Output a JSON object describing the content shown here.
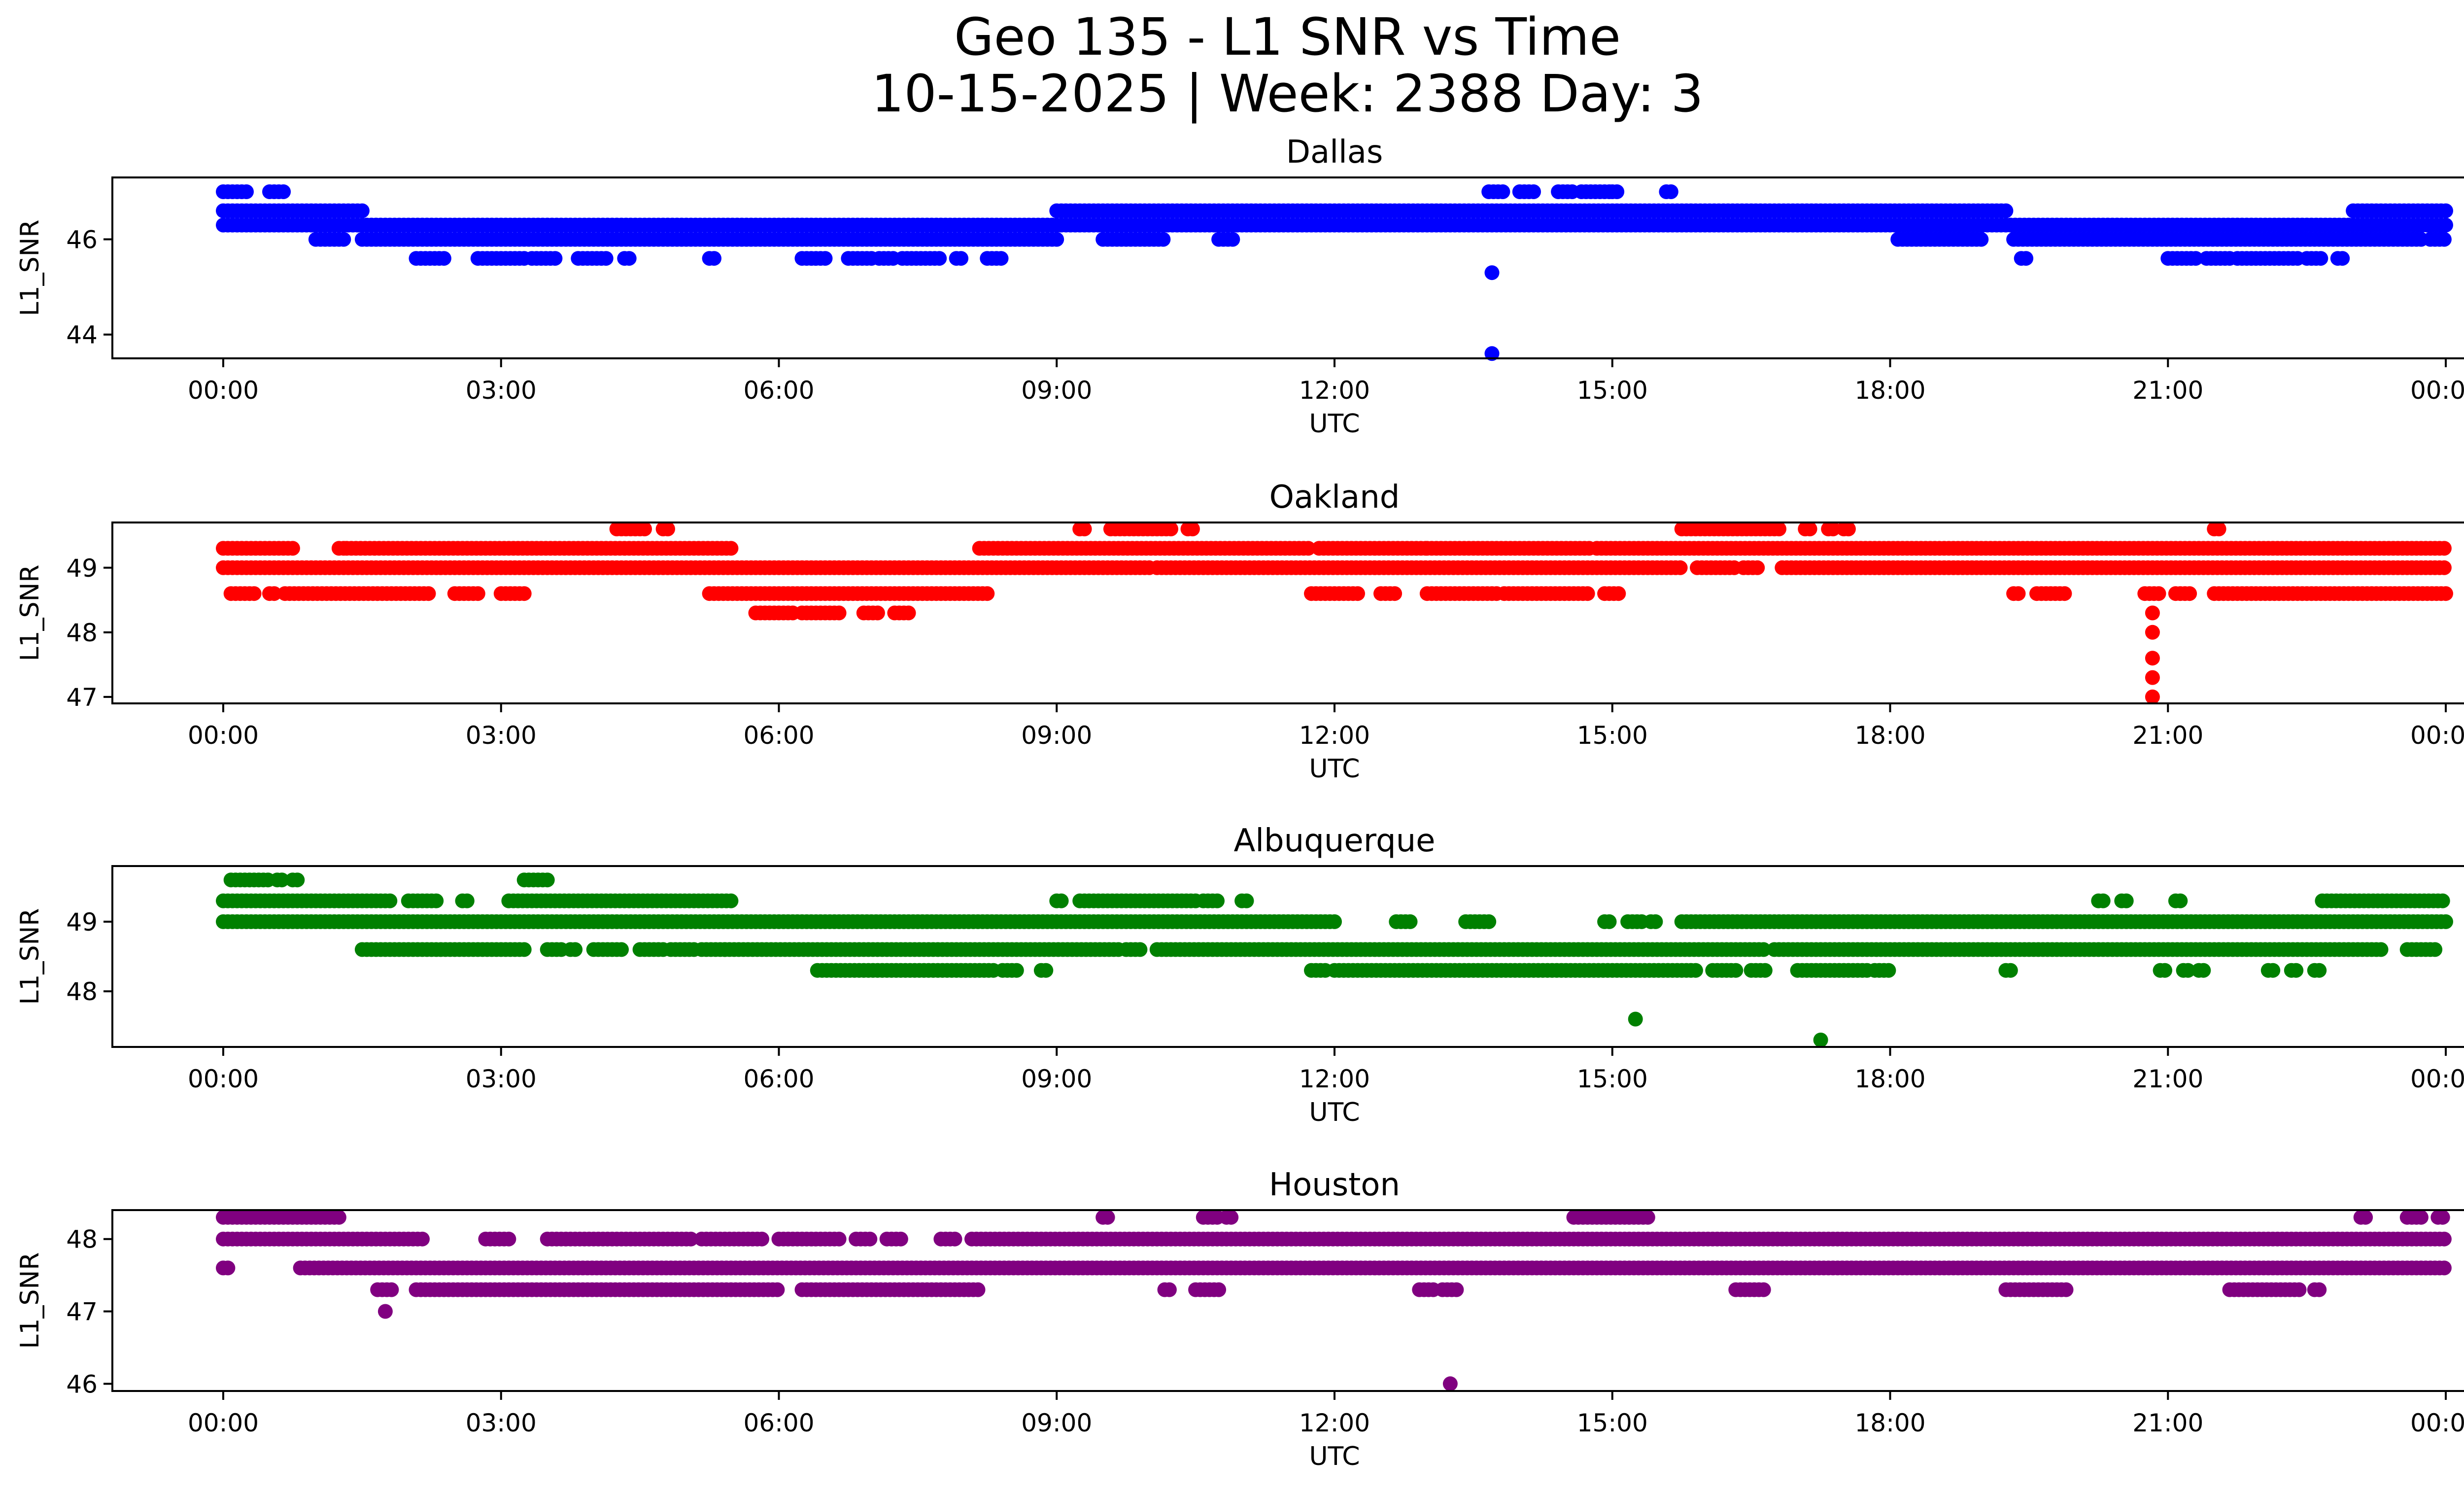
{
  "figure": {
    "title_line1": "Geo 135 - L1 SNR vs Time",
    "title_line2": "10-15-2025 | Week: 2388 Day: 3"
  },
  "chart_data": [
    {
      "type": "scatter",
      "title": "Dallas",
      "xlabel": "UTC",
      "ylabel": "L1_SNR",
      "color": "#0000ff",
      "xlim": [
        "23:20",
        "24:00+2:25"
      ],
      "x_ticks": [
        "00:00",
        "03:00",
        "06:00",
        "09:00",
        "12:00",
        "15:00",
        "18:00",
        "21:00",
        "00:00"
      ],
      "y_ticks": [
        44,
        46
      ],
      "ylim": [
        43.5,
        47.3
      ],
      "series": [
        {
          "levels": [
            {
              "y": 46.6,
              "ranges": [
                [
                  "00:00",
                  "01:30"
                ],
                [
                  "09:00",
                  "19:15"
                ],
                [
                  "23:00",
                  "24:00"
                ]
              ]
            },
            {
              "y": 46.3,
              "ranges": [
                [
                  "00:00",
                  "24:00"
                ]
              ]
            },
            {
              "y": 46.0,
              "ranges": [
                [
                  "01:00",
                  "01:20"
                ],
                [
                  "01:30",
                  "09:00"
                ],
                [
                  "09:30",
                  "10:10"
                ],
                [
                  "10:45",
                  "10:55"
                ],
                [
                  "18:05",
                  "19:00"
                ],
                [
                  "19:20",
                  "23:45"
                ],
                [
                  "23:50",
                  "24:00"
                ]
              ]
            },
            {
              "y": 45.6,
              "ranges": [
                [
                  "02:05",
                  "02:25"
                ],
                [
                  "02:45",
                  "03:15"
                ],
                [
                  "03:20",
                  "03:35"
                ],
                [
                  "03:50",
                  "04:10"
                ],
                [
                  "04:20",
                  "04:25"
                ],
                [
                  "05:15",
                  "05:20"
                ],
                [
                  "06:15",
                  "06:30"
                ],
                [
                  "06:45",
                  "07:00"
                ],
                [
                  "07:05",
                  "07:15"
                ],
                [
                  "07:20",
                  "07:45"
                ],
                [
                  "07:55",
                  "08:00"
                ],
                [
                  "08:15",
                  "08:25"
                ],
                [
                  "19:25",
                  "19:30"
                ],
                [
                  "21:00",
                  "21:20"
                ],
                [
                  "21:25",
                  "21:40"
                ],
                [
                  "21:45",
                  "22:25"
                ],
                [
                  "22:30",
                  "22:40"
                ],
                [
                  "22:50",
                  "22:55"
                ]
              ]
            },
            {
              "y": 47.0,
              "ranges": [
                [
                  "00:00",
                  "00:15"
                ],
                [
                  "00:30",
                  "00:40"
                ],
                [
                  "13:40",
                  "13:50"
                ],
                [
                  "14:00",
                  "14:10"
                ],
                [
                  "14:25",
                  "14:35"
                ],
                [
                  "14:40",
                  "15:00"
                ],
                [
                  "15:00",
                  "15:05"
                ],
                [
                  "15:35",
                  "15:40"
                ]
              ]
            }
          ],
          "points": [
            {
              "x": "13:42",
              "y": 45.3
            },
            {
              "x": "13:42",
              "y": 43.6
            }
          ]
        }
      ]
    },
    {
      "type": "scatter",
      "title": "Oakland",
      "xlabel": "UTC",
      "ylabel": "L1_SNR",
      "color": "#ff0000",
      "x_ticks": [
        "00:00",
        "03:00",
        "06:00",
        "09:00",
        "12:00",
        "15:00",
        "18:00",
        "21:00",
        "00:00"
      ],
      "y_ticks": [
        47,
        48,
        49
      ],
      "ylim": [
        46.9,
        49.7
      ],
      "series": [
        {
          "levels": [
            {
              "y": 49.3,
              "ranges": [
                [
                  "00:00",
                  "00:45"
                ],
                [
                  "01:15",
                  "01:20"
                ],
                [
                  "01:20",
                  "05:30"
                ],
                [
                  "08:10",
                  "11:45"
                ],
                [
                  "11:50",
                  "13:00"
                ],
                [
                  "13:00",
                  "14:45"
                ],
                [
                  "14:50",
                  "24:00"
                ]
              ]
            },
            {
              "y": 49.0,
              "ranges": [
                [
                  "00:00",
                  "10:00"
                ],
                [
                  "10:05",
                  "15:45"
                ],
                [
                  "15:55",
                  "16:20"
                ],
                [
                  "16:25",
                  "16:35"
                ],
                [
                  "16:50",
                  "24:00"
                ]
              ]
            },
            {
              "y": 48.6,
              "ranges": [
                [
                  "00:05",
                  "00:20"
                ],
                [
                  "00:30",
                  "00:35"
                ],
                [
                  "00:40",
                  "02:15"
                ],
                [
                  "02:30",
                  "02:45"
                ],
                [
                  "03:00",
                  "03:15"
                ],
                [
                  "05:15",
                  "08:15"
                ],
                [
                  "11:45",
                  "12:15"
                ],
                [
                  "12:30",
                  "12:40"
                ],
                [
                  "13:00",
                  "13:45"
                ],
                [
                  "13:50",
                  "14:45"
                ],
                [
                  "14:55",
                  "15:05"
                ],
                [
                  "19:20",
                  "19:25"
                ],
                [
                  "19:35",
                  "19:55"
                ],
                [
                  "20:45",
                  "20:55"
                ],
                [
                  "21:05",
                  "21:15"
                ],
                [
                  "21:30",
                  "24:00"
                ]
              ]
            },
            {
              "y": 48.3,
              "ranges": [
                [
                  "05:45",
                  "06:10"
                ],
                [
                  "06:15",
                  "06:40"
                ],
                [
                  "06:55",
                  "07:05"
                ],
                [
                  "07:15",
                  "07:25"
                ]
              ]
            },
            {
              "y": 49.6,
              "ranges": [
                [
                  "04:15",
                  "04:35"
                ],
                [
                  "04:45",
                  "04:50"
                ],
                [
                  "09:15",
                  "09:20"
                ],
                [
                  "09:35",
                  "10:15"
                ],
                [
                  "10:25",
                  "10:30"
                ],
                [
                  "15:45",
                  "16:50"
                ],
                [
                  "17:05",
                  "17:10"
                ],
                [
                  "17:20",
                  "17:25"
                ],
                [
                  "17:30",
                  "17:35"
                ],
                [
                  "21:30",
                  "21:35"
                ]
              ]
            }
          ],
          "points": [
            {
              "x": "20:50",
              "y": 48.3
            },
            {
              "x": "20:50",
              "y": 48.0
            },
            {
              "x": "20:50",
              "y": 47.6
            },
            {
              "x": "20:50",
              "y": 47.3
            },
            {
              "x": "20:50",
              "y": 47.0
            }
          ]
        }
      ]
    },
    {
      "type": "scatter",
      "title": "Albuquerque",
      "xlabel": "UTC",
      "ylabel": "L1_SNR",
      "color": "#008000",
      "x_ticks": [
        "00:00",
        "03:00",
        "06:00",
        "09:00",
        "12:00",
        "15:00",
        "18:00",
        "21:00",
        "00:00"
      ],
      "y_ticks": [
        48,
        49
      ],
      "ylim": [
        47.2,
        49.8
      ],
      "series": [
        {
          "levels": [
            {
              "y": 49.3,
              "ranges": [
                [
                  "00:00",
                  "01:50"
                ],
                [
                  "02:00",
                  "02:20"
                ],
                [
                  "02:35",
                  "02:40"
                ],
                [
                  "03:05",
                  "05:30"
                ],
                [
                  "09:00",
                  "09:05"
                ],
                [
                  "09:15",
                  "10:30"
                ],
                [
                  "10:35",
                  "10:45"
                ],
                [
                  "11:00",
                  "11:05"
                ],
                [
                  "20:15",
                  "20:20"
                ],
                [
                  "20:30",
                  "20:35"
                ],
                [
                  "21:05",
                  "21:10"
                ],
                [
                  "22:40",
                  "24:00"
                ]
              ]
            },
            {
              "y": 49.0,
              "ranges": [
                [
                  "00:00",
                  "12:00"
                ],
                [
                  "12:40",
                  "12:50"
                ],
                [
                  "13:25",
                  "13:40"
                ],
                [
                  "14:55",
                  "15:00"
                ],
                [
                  "15:10",
                  "15:20"
                ],
                [
                  "15:25",
                  "15:30"
                ],
                [
                  "15:45",
                  "24:00"
                ]
              ]
            },
            {
              "y": 48.6,
              "ranges": [
                [
                  "01:30",
                  "03:15"
                ],
                [
                  "03:30",
                  "03:40"
                ],
                [
                  "03:45",
                  "03:50"
                ],
                [
                  "04:00",
                  "04:20"
                ],
                [
                  "04:30",
                  "04:45"
                ],
                [
                  "04:50",
                  "05:05"
                ],
                [
                  "05:10",
                  "05:25"
                ],
                [
                  "05:25",
                  "09:40"
                ],
                [
                  "09:45",
                  "09:55"
                ],
                [
                  "10:05",
                  "16:40"
                ],
                [
                  "16:45",
                  "23:20"
                ],
                [
                  "23:35",
                  "23:55"
                ]
              ]
            },
            {
              "y": 48.3,
              "ranges": [
                [
                  "06:25",
                  "08:20"
                ],
                [
                  "08:25",
                  "08:35"
                ],
                [
                  "08:50",
                  "08:55"
                ],
                [
                  "11:45",
                  "11:55"
                ],
                [
                  "12:00",
                  "15:55"
                ],
                [
                  "16:05",
                  "16:20"
                ],
                [
                  "16:30",
                  "16:40"
                ],
                [
                  "17:00",
                  "17:45"
                ],
                [
                  "17:50",
                  "18:00"
                ],
                [
                  "19:15",
                  "19:20"
                ],
                [
                  "20:55",
                  "21:00"
                ],
                [
                  "21:10",
                  "21:15"
                ],
                [
                  "21:20",
                  "21:25"
                ],
                [
                  "22:05",
                  "22:10"
                ],
                [
                  "22:20",
                  "22:25"
                ],
                [
                  "22:35",
                  "22:40"
                ]
              ]
            },
            {
              "y": 49.6,
              "ranges": [
                [
                  "00:05",
                  "00:30"
                ],
                [
                  "00:35",
                  "00:40"
                ],
                [
                  "00:45",
                  "00:50"
                ],
                [
                  "03:15",
                  "03:30"
                ]
              ]
            }
          ],
          "points": [
            {
              "x": "15:15",
              "y": 47.6
            },
            {
              "x": "17:15",
              "y": 47.3
            }
          ]
        }
      ]
    },
    {
      "type": "scatter",
      "title": "Houston",
      "xlabel": "UTC",
      "ylabel": "L1_SNR",
      "color": "#800080",
      "x_ticks": [
        "00:00",
        "03:00",
        "06:00",
        "09:00",
        "12:00",
        "15:00",
        "18:00",
        "21:00",
        "00:00"
      ],
      "y_ticks": [
        46,
        47,
        48
      ],
      "ylim": [
        45.9,
        48.4
      ],
      "series": [
        {
          "levels": [
            {
              "y": 48.3,
              "ranges": [
                [
                  "00:00",
                  "01:15"
                ],
                [
                  "09:30",
                  "09:35"
                ],
                [
                  "10:35",
                  "10:45"
                ],
                [
                  "10:50",
                  "10:55"
                ],
                [
                  "14:35",
                  "15:25"
                ],
                [
                  "23:05",
                  "23:10"
                ],
                [
                  "23:35",
                  "23:45"
                ],
                [
                  "23:55",
                  "24:00"
                ]
              ]
            },
            {
              "y": 48.0,
              "ranges": [
                [
                  "00:00",
                  "02:10"
                ],
                [
                  "02:50",
                  "03:05"
                ],
                [
                  "03:30",
                  "05:05"
                ],
                [
                  "05:10",
                  "05:50"
                ],
                [
                  "06:00",
                  "06:40"
                ],
                [
                  "06:50",
                  "07:00"
                ],
                [
                  "07:10",
                  "07:20"
                ],
                [
                  "07:45",
                  "07:55"
                ],
                [
                  "08:05",
                  "24:00"
                ]
              ]
            },
            {
              "y": 47.6,
              "ranges": [
                [
                  "00:00",
                  "00:03"
                ],
                [
                  "00:50",
                  "24:00"
                ]
              ]
            },
            {
              "y": 47.3,
              "ranges": [
                [
                  "01:40",
                  "01:50"
                ],
                [
                  "02:05",
                  "06:00"
                ],
                [
                  "06:15",
                  "08:10"
                ],
                [
                  "10:10",
                  "10:15"
                ],
                [
                  "10:30",
                  "10:45"
                ],
                [
                  "12:55",
                  "13:05"
                ],
                [
                  "13:10",
                  "13:20"
                ],
                [
                  "16:20",
                  "16:40"
                ],
                [
                  "19:15",
                  "19:55"
                ],
                [
                  "21:40",
                  "22:25"
                ],
                [
                  "22:35",
                  "22:40"
                ]
              ]
            }
          ],
          "points": [
            {
              "x": "01:45",
              "y": 47.0
            },
            {
              "x": "13:15",
              "y": 46.0
            }
          ]
        }
      ]
    }
  ]
}
